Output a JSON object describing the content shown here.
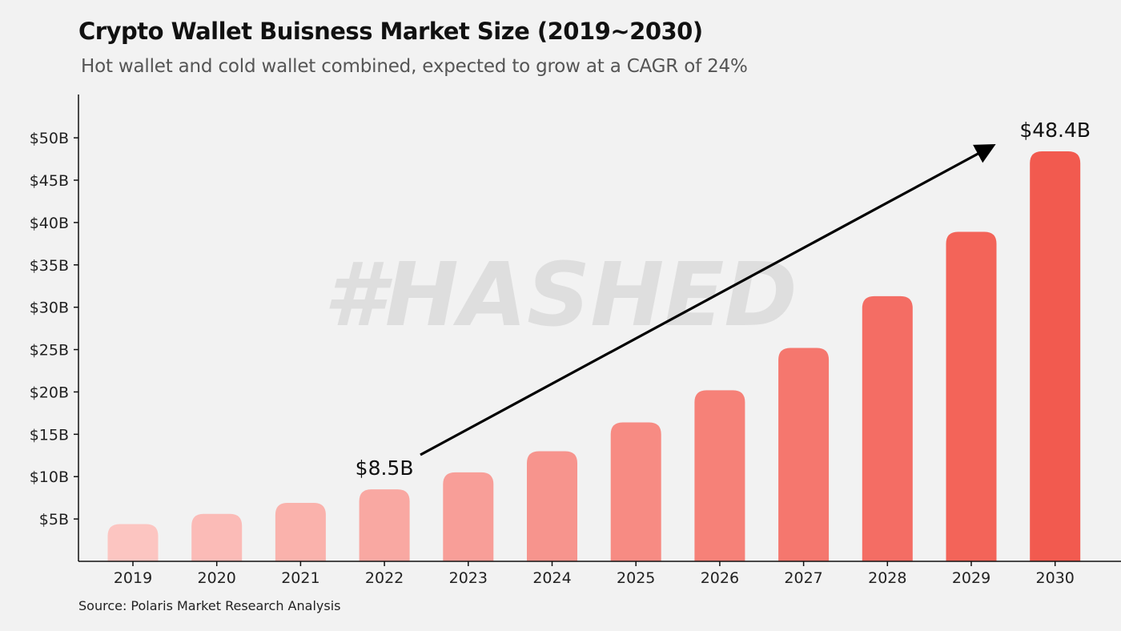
{
  "title": "Crypto Wallet Buisness Market Size (2019~2030)",
  "subtitle": "Hot wallet and cold wallet combined, expected to grow at a CAGR of 24%",
  "source": "Source: Polaris Market Research Analysis",
  "watermark": "#HASHED",
  "chart_data": {
    "type": "bar",
    "categories": [
      "2019",
      "2020",
      "2021",
      "2022",
      "2023",
      "2024",
      "2025",
      "2026",
      "2027",
      "2028",
      "2029",
      "2030"
    ],
    "values": [
      4.4,
      5.6,
      6.9,
      8.5,
      10.5,
      13.0,
      16.4,
      20.2,
      25.2,
      31.3,
      38.9,
      48.4
    ],
    "ylabel": "",
    "xlabel": "",
    "ylim": [
      0,
      55
    ],
    "yticks": [
      5,
      10,
      15,
      20,
      25,
      30,
      35,
      40,
      45,
      50
    ],
    "ytick_labels": [
      "$5B",
      "$10B",
      "$15B",
      "$20B",
      "$25B",
      "$30B",
      "$35B",
      "$40B",
      "$45B",
      "$50B"
    ],
    "annotations": [
      {
        "category": "2022",
        "text": "$8.5B"
      },
      {
        "category": "2030",
        "text": "$48.4B"
      }
    ],
    "arrow": {
      "from": "2022",
      "to": "2030"
    },
    "colors": {
      "start": "#fcc5c1",
      "end": "#f25a4f"
    },
    "grid": false
  }
}
